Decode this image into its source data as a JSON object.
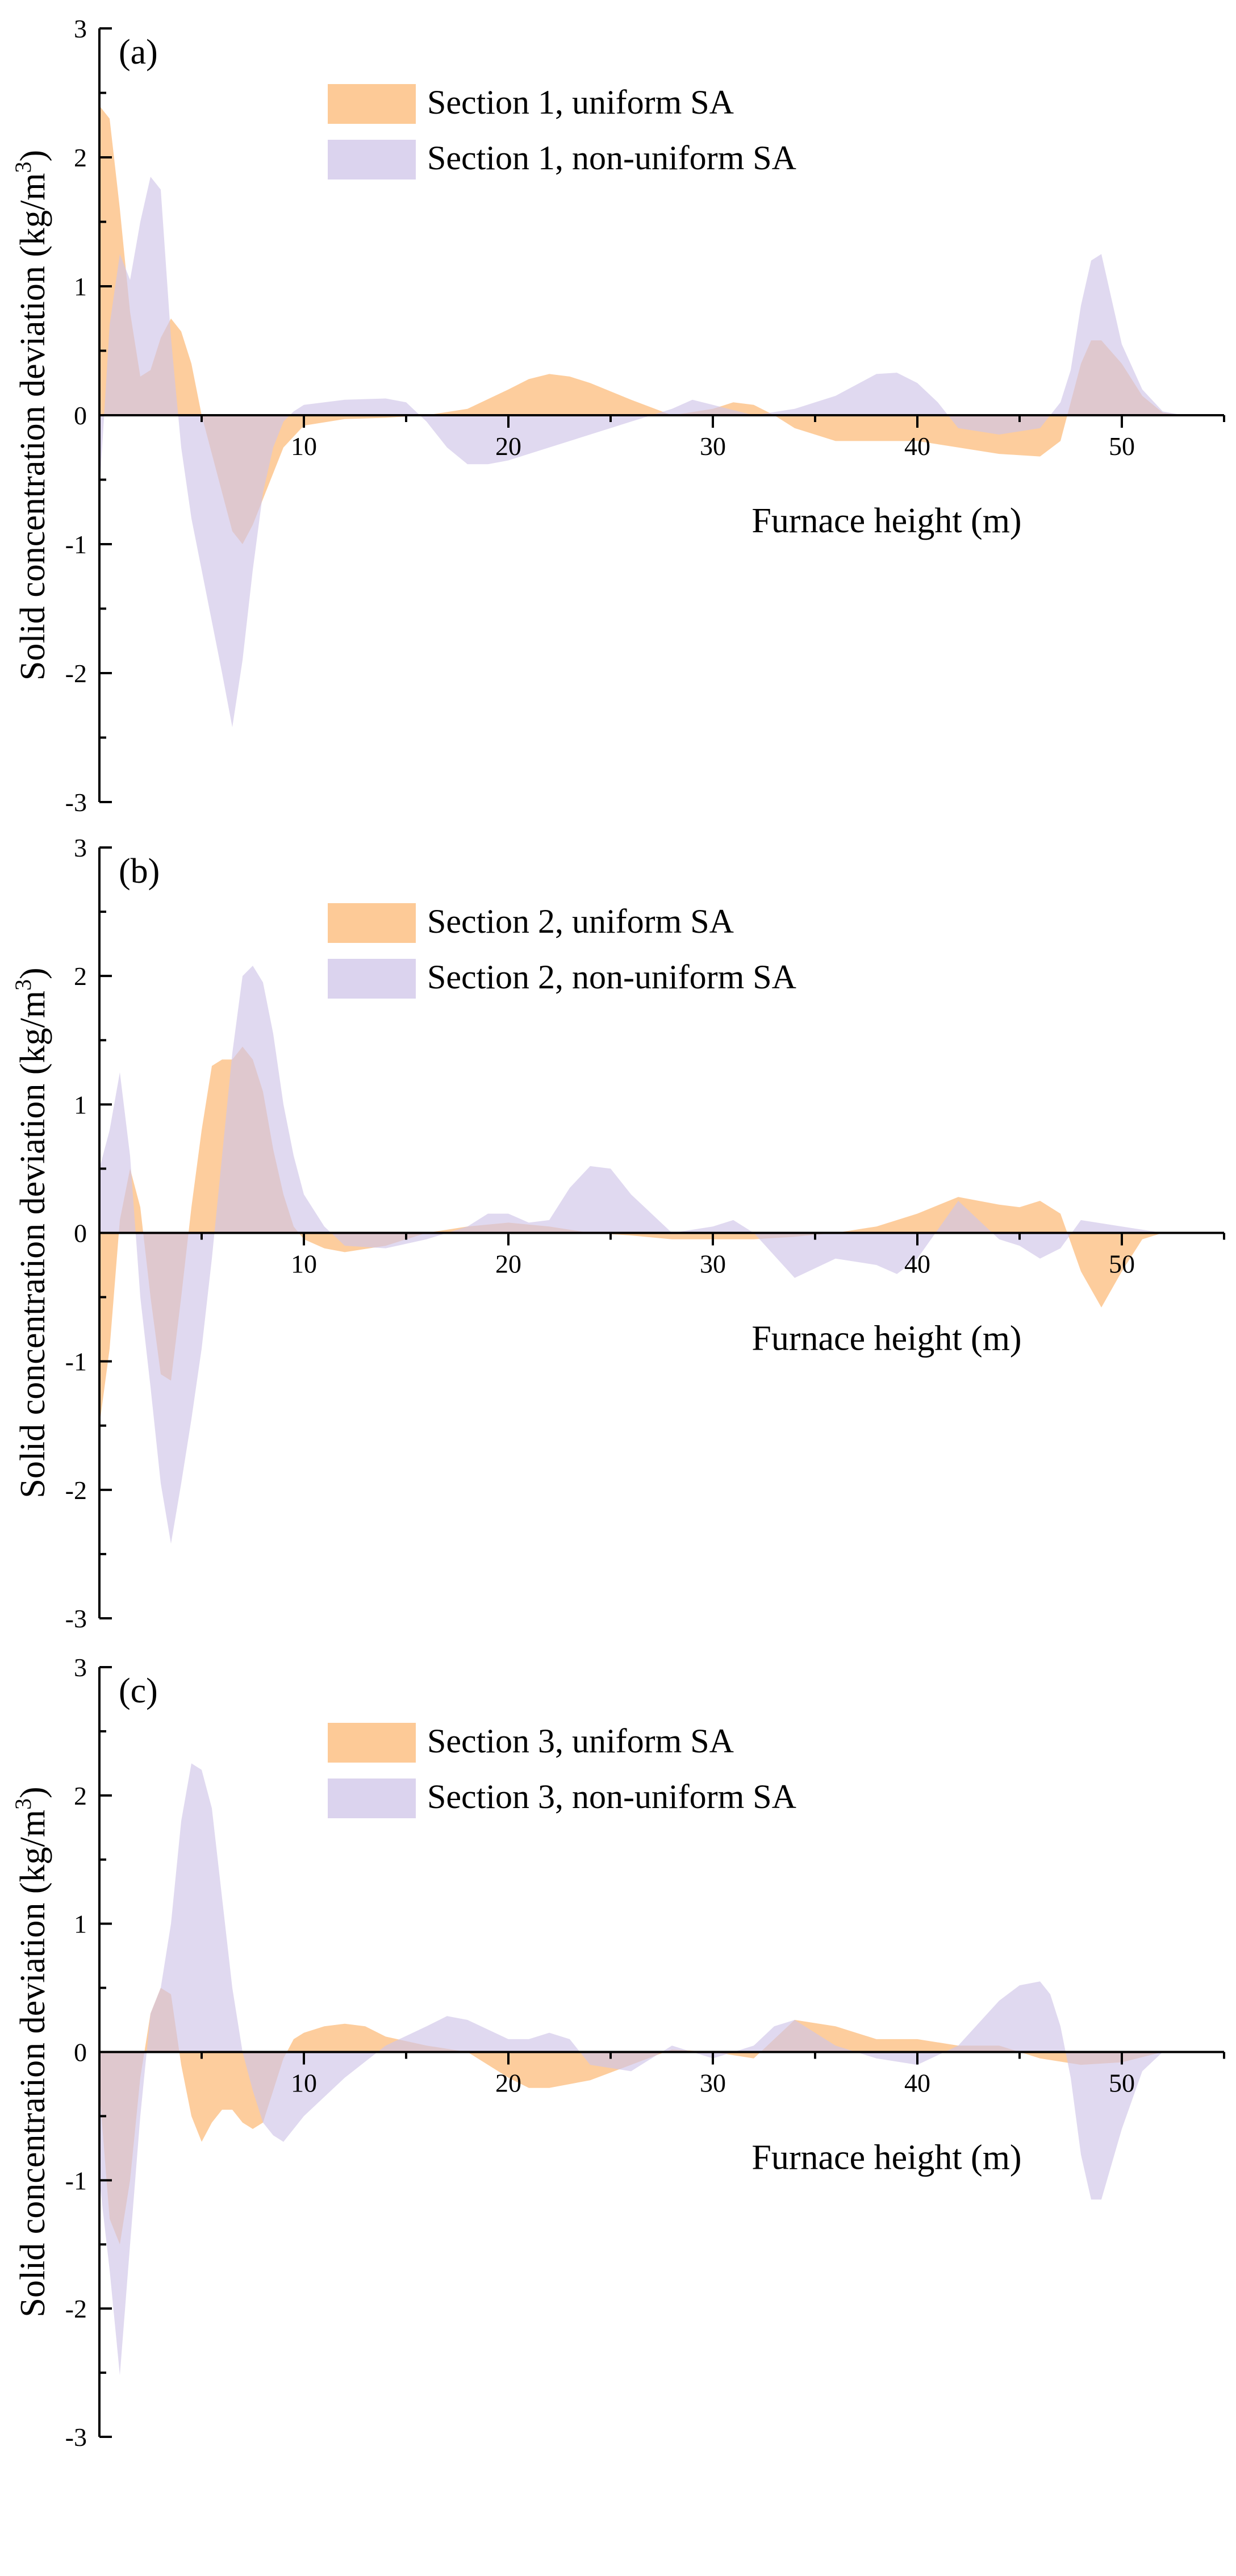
{
  "figure": {
    "ylabel": "Solid concentration deviation (kg/m³)",
    "ylabel_main": "Solid concentration deviation (kg/m",
    "ylabel_sup": "3",
    "ylabel_close": ")"
  },
  "colors": {
    "uniform_fill": "#fdc48c",
    "nonuniform_fill": "#cfc4e8"
  },
  "chart_data": [
    {
      "type": "area",
      "panel_label": "(a)",
      "xlabel": "Furnace height (m)",
      "xlim": [
        0,
        55
      ],
      "ylim": [
        -3,
        3
      ],
      "xticks": [
        10,
        20,
        30,
        40,
        50
      ],
      "yticks": [
        -3,
        -2,
        -1,
        0,
        1,
        2,
        3
      ],
      "series": [
        {
          "name": "Section 1, uniform SA",
          "x": [
            0,
            0.5,
            1,
            1.5,
            2,
            2.5,
            3,
            3.5,
            4,
            4.5,
            5,
            5.5,
            6,
            6.5,
            7,
            7.5,
            8,
            8.5,
            9,
            10,
            12,
            14,
            16,
            18,
            20,
            21,
            22,
            23,
            24,
            26,
            28,
            30,
            31,
            32,
            33,
            34,
            36,
            38,
            40,
            42,
            44,
            46,
            47,
            48,
            48.5,
            49,
            50,
            51,
            52,
            53
          ],
          "values": [
            2.4,
            2.3,
            1.6,
            0.8,
            0.3,
            0.35,
            0.6,
            0.75,
            0.65,
            0.4,
            0.0,
            -0.3,
            -0.6,
            -0.9,
            -1.0,
            -0.85,
            -0.65,
            -0.45,
            -0.25,
            -0.08,
            -0.03,
            -0.02,
            0.0,
            0.05,
            0.2,
            0.28,
            0.32,
            0.3,
            0.25,
            0.12,
            0.0,
            0.05,
            0.1,
            0.08,
            0.0,
            -0.1,
            -0.2,
            -0.2,
            -0.2,
            -0.25,
            -0.3,
            -0.32,
            -0.2,
            0.4,
            0.58,
            0.58,
            0.4,
            0.15,
            0.02,
            0.0
          ]
        },
        {
          "name": "Section 1, non-uniform SA",
          "x": [
            0,
            0.5,
            1,
            1.5,
            2,
            2.5,
            3,
            3.5,
            4,
            4.5,
            5,
            5.5,
            6,
            6.5,
            7,
            7.5,
            8,
            8.5,
            9,
            9.5,
            10,
            12,
            14,
            15,
            16,
            17,
            18,
            19,
            20,
            21,
            22,
            24,
            26,
            28,
            29,
            30,
            32,
            34,
            36,
            38,
            39,
            40,
            41,
            42,
            44,
            46,
            47,
            47.5,
            48,
            48.5,
            49,
            49.5,
            50,
            51,
            52,
            53
          ],
          "values": [
            -0.6,
            0.7,
            1.25,
            1.05,
            1.5,
            1.85,
            1.75,
            0.6,
            -0.25,
            -0.8,
            -1.2,
            -1.6,
            -2.0,
            -2.42,
            -1.9,
            -1.2,
            -0.6,
            -0.25,
            -0.05,
            0.03,
            0.08,
            0.12,
            0.13,
            0.1,
            -0.05,
            -0.25,
            -0.38,
            -0.38,
            -0.35,
            -0.3,
            -0.25,
            -0.15,
            -0.05,
            0.05,
            0.12,
            0.08,
            0.0,
            0.05,
            0.15,
            0.32,
            0.33,
            0.25,
            0.1,
            -0.1,
            -0.15,
            -0.1,
            0.1,
            0.35,
            0.85,
            1.2,
            1.25,
            0.9,
            0.55,
            0.2,
            0.03,
            0.0
          ]
        }
      ]
    },
    {
      "type": "area",
      "panel_label": "(b)",
      "xlabel": "Furnace height (m)",
      "xlim": [
        0,
        55
      ],
      "ylim": [
        -3,
        3
      ],
      "xticks": [
        10,
        20,
        30,
        40,
        50
      ],
      "yticks": [
        -3,
        -2,
        -1,
        0,
        1,
        2,
        3
      ],
      "series": [
        {
          "name": "Section 2, uniform SA",
          "x": [
            0,
            0.5,
            1,
            1.5,
            2,
            2.5,
            3,
            3.5,
            4,
            4.5,
            5,
            5.5,
            6,
            6.5,
            7,
            7.5,
            8,
            8.5,
            9,
            9.5,
            10,
            11,
            12,
            14,
            16,
            18,
            20,
            22,
            24,
            26,
            28,
            30,
            32,
            34,
            36,
            38,
            40,
            42,
            44,
            45,
            46,
            47,
            48,
            49,
            50,
            51,
            52
          ],
          "values": [
            -1.5,
            -0.9,
            0.1,
            0.5,
            0.2,
            -0.5,
            -1.1,
            -1.15,
            -0.5,
            0.2,
            0.8,
            1.3,
            1.35,
            1.35,
            1.45,
            1.35,
            1.1,
            0.65,
            0.3,
            0.05,
            -0.05,
            -0.12,
            -0.15,
            -0.1,
            0.0,
            0.05,
            0.08,
            0.05,
            0.0,
            -0.02,
            -0.05,
            -0.05,
            -0.05,
            -0.03,
            0.0,
            0.05,
            0.15,
            0.28,
            0.22,
            0.2,
            0.25,
            0.15,
            -0.3,
            -0.58,
            -0.3,
            -0.05,
            0.0
          ]
        },
        {
          "name": "Section 2, non-uniform SA",
          "x": [
            0,
            0.5,
            1,
            1.5,
            2,
            2.5,
            3,
            3.5,
            4,
            4.5,
            5,
            5.5,
            6,
            6.5,
            7,
            7.5,
            8,
            8.5,
            9,
            9.5,
            10,
            11,
            12,
            14,
            16,
            18,
            19,
            20,
            21,
            22,
            23,
            24,
            25,
            26,
            28,
            30,
            31,
            32,
            34,
            36,
            38,
            39,
            40,
            42,
            44,
            45,
            46,
            47,
            48,
            50,
            52
          ],
          "values": [
            0.5,
            0.8,
            1.25,
            0.6,
            -0.5,
            -1.2,
            -1.95,
            -2.42,
            -1.95,
            -1.45,
            -0.9,
            -0.2,
            0.6,
            1.4,
            2.0,
            2.08,
            1.95,
            1.55,
            1.0,
            0.6,
            0.3,
            0.05,
            -0.1,
            -0.12,
            -0.05,
            0.05,
            0.15,
            0.15,
            0.08,
            0.1,
            0.35,
            0.52,
            0.5,
            0.3,
            0.0,
            0.05,
            0.1,
            0.0,
            -0.35,
            -0.2,
            -0.25,
            -0.32,
            -0.2,
            0.25,
            -0.05,
            -0.1,
            -0.2,
            -0.12,
            0.1,
            0.05,
            0.0
          ]
        }
      ]
    },
    {
      "type": "area",
      "panel_label": "(c)",
      "xlabel": "Furnace height (m)",
      "xlim": [
        0,
        55
      ],
      "ylim": [
        -3,
        3
      ],
      "xticks": [
        10,
        20,
        30,
        40,
        50
      ],
      "yticks": [
        -3,
        -2,
        -1,
        0,
        1,
        2,
        3
      ],
      "series": [
        {
          "name": "Section 3, uniform SA",
          "x": [
            0,
            0.5,
            1,
            1.5,
            2,
            2.5,
            3,
            3.5,
            4,
            4.5,
            5,
            5.5,
            6,
            6.5,
            7,
            7.5,
            8,
            8.5,
            9,
            9.5,
            10,
            11,
            12,
            13,
            14,
            16,
            18,
            20,
            21,
            22,
            24,
            26,
            28,
            30,
            32,
            34,
            36,
            38,
            40,
            42,
            44,
            46,
            48,
            50,
            52
          ],
          "values": [
            -0.3,
            -1.3,
            -1.5,
            -1.0,
            -0.2,
            0.3,
            0.5,
            0.45,
            -0.1,
            -0.5,
            -0.7,
            -0.55,
            -0.45,
            -0.45,
            -0.55,
            -0.6,
            -0.55,
            -0.3,
            -0.05,
            0.1,
            0.15,
            0.2,
            0.22,
            0.2,
            0.12,
            0.05,
            0.0,
            -0.2,
            -0.28,
            -0.28,
            -0.22,
            -0.1,
            0.02,
            0.0,
            -0.05,
            0.25,
            0.2,
            0.1,
            0.1,
            0.05,
            0.05,
            -0.05,
            -0.1,
            -0.08,
            0.0
          ]
        },
        {
          "name": "Section 3, non-uniform SA",
          "x": [
            0,
            0.5,
            1,
            1.5,
            2,
            2.5,
            3,
            3.5,
            4,
            4.5,
            5,
            5.5,
            6,
            6.5,
            7,
            7.5,
            8,
            8.5,
            9,
            9.5,
            10,
            12,
            14,
            16,
            17,
            18,
            20,
            21,
            22,
            23,
            24,
            26,
            28,
            30,
            32,
            33,
            34,
            35,
            36,
            38,
            40,
            42,
            44,
            45,
            46,
            46.5,
            47,
            47.5,
            48,
            48.5,
            49,
            50,
            51,
            52
          ],
          "values": [
            -1.0,
            -1.7,
            -2.52,
            -1.5,
            -0.5,
            0.3,
            0.5,
            1.0,
            1.8,
            2.25,
            2.2,
            1.9,
            1.2,
            0.5,
            0.0,
            -0.3,
            -0.55,
            -0.65,
            -0.7,
            -0.6,
            -0.5,
            -0.2,
            0.05,
            0.2,
            0.28,
            0.25,
            0.1,
            0.1,
            0.15,
            0.1,
            -0.1,
            -0.15,
            0.05,
            -0.05,
            0.05,
            0.2,
            0.25,
            0.15,
            0.05,
            -0.05,
            -0.1,
            0.05,
            0.4,
            0.52,
            0.55,
            0.45,
            0.2,
            -0.2,
            -0.8,
            -1.15,
            -1.15,
            -0.6,
            -0.15,
            0.0
          ]
        }
      ]
    }
  ]
}
